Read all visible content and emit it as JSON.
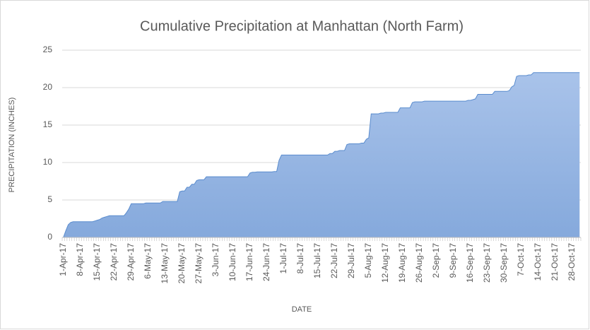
{
  "chart_data": {
    "type": "area",
    "title": "Cumulative Precipitation at Manhattan (North Farm)",
    "x_label": "DATE",
    "y_label": "PRECIPITATION (INCHES)",
    "color": "#8fb0de",
    "line_color": "#5a8cce",
    "grid": true,
    "ylim": [
      0,
      25
    ],
    "yticks": [
      0,
      5,
      10,
      15,
      20,
      25
    ],
    "categories": [
      "1-Apr-17",
      null,
      null,
      null,
      null,
      null,
      null,
      "8-Apr-17",
      null,
      null,
      null,
      null,
      null,
      null,
      "15-Apr-17",
      null,
      null,
      null,
      null,
      null,
      null,
      "22-Apr-17",
      null,
      null,
      null,
      null,
      null,
      null,
      "29-Apr-17",
      null,
      null,
      null,
      null,
      null,
      null,
      "6-May-17",
      null,
      null,
      null,
      null,
      null,
      null,
      "13-May-17",
      null,
      null,
      null,
      null,
      null,
      null,
      "20-May-17",
      null,
      null,
      null,
      null,
      null,
      null,
      "27-May-17",
      null,
      null,
      null,
      null,
      null,
      null,
      "3-Jun-17",
      null,
      null,
      null,
      null,
      null,
      null,
      "10-Jun-17",
      null,
      null,
      null,
      null,
      null,
      null,
      "17-Jun-17",
      null,
      null,
      null,
      null,
      null,
      null,
      "24-Jun-17",
      null,
      null,
      null,
      null,
      null,
      null,
      "1-Jul-17",
      null,
      null,
      null,
      null,
      null,
      null,
      "8-Jul-17",
      null,
      null,
      null,
      null,
      null,
      null,
      "15-Jul-17",
      null,
      null,
      null,
      null,
      null,
      null,
      "22-Jul-17",
      null,
      null,
      null,
      null,
      null,
      null,
      "29-Jul-17",
      null,
      null,
      null,
      null,
      null,
      null,
      "5-Aug-17",
      null,
      null,
      null,
      null,
      null,
      null,
      "12-Aug-17",
      null,
      null,
      null,
      null,
      null,
      null,
      "19-Aug-17",
      null,
      null,
      null,
      null,
      null,
      null,
      "26-Aug-17",
      null,
      null,
      null,
      null,
      null,
      null,
      "2-Sep-17",
      null,
      null,
      null,
      null,
      null,
      null,
      "9-Sep-17",
      null,
      null,
      null,
      null,
      null,
      null,
      "16-Sep-17",
      null,
      null,
      null,
      null,
      null,
      null,
      "23-Sep-17",
      null,
      null,
      null,
      null,
      null,
      null,
      "30-Sep-17",
      null,
      null,
      null,
      null,
      null,
      null,
      "7-Oct-17",
      null,
      null,
      null,
      null,
      null,
      null,
      "14-Oct-17",
      null,
      null,
      null,
      null,
      null,
      null,
      "21-Oct-17",
      null,
      null,
      null,
      null,
      null,
      null,
      "28-Oct-17",
      null,
      null,
      null
    ],
    "values": [
      0,
      0.9,
      1.7,
      2.0,
      2.1,
      2.1,
      2.1,
      2.1,
      2.1,
      2.1,
      2.1,
      2.1,
      2.1,
      2.2,
      2.3,
      2.4,
      2.6,
      2.7,
      2.8,
      2.9,
      2.9,
      2.9,
      2.9,
      2.9,
      2.9,
      2.9,
      3.3,
      3.8,
      4.5,
      4.5,
      4.5,
      4.5,
      4.5,
      4.5,
      4.6,
      4.6,
      4.6,
      4.6,
      4.6,
      4.6,
      4.6,
      4.8,
      4.8,
      4.8,
      4.8,
      4.8,
      4.8,
      4.8,
      6.1,
      6.2,
      6.2,
      6.7,
      6.7,
      7.1,
      7.1,
      7.6,
      7.7,
      7.7,
      7.7,
      8.1,
      8.1,
      8.1,
      8.1,
      8.1,
      8.1,
      8.1,
      8.1,
      8.1,
      8.1,
      8.1,
      8.1,
      8.1,
      8.1,
      8.1,
      8.1,
      8.1,
      8.1,
      8.6,
      8.7,
      8.7,
      8.75,
      8.75,
      8.75,
      8.75,
      8.75,
      8.75,
      8.75,
      8.8,
      8.8,
      10.3,
      11.0,
      11.0,
      11.0,
      11.0,
      11.0,
      11.0,
      11.0,
      11.0,
      11.0,
      11.0,
      11.0,
      11.0,
      11.0,
      11.0,
      11.0,
      11.0,
      11.0,
      11.0,
      11.0,
      11.0,
      11.2,
      11.2,
      11.5,
      11.5,
      11.6,
      11.6,
      11.6,
      12.4,
      12.5,
      12.5,
      12.5,
      12.5,
      12.5,
      12.6,
      12.6,
      13.1,
      13.3,
      16.5,
      16.5,
      16.5,
      16.5,
      16.6,
      16.6,
      16.7,
      16.7,
      16.7,
      16.7,
      16.7,
      16.7,
      17.3,
      17.3,
      17.3,
      17.3,
      17.3,
      18.0,
      18.1,
      18.1,
      18.1,
      18.1,
      18.2,
      18.2,
      18.2,
      18.2,
      18.2,
      18.2,
      18.2,
      18.2,
      18.2,
      18.2,
      18.2,
      18.2,
      18.2,
      18.2,
      18.2,
      18.2,
      18.2,
      18.2,
      18.3,
      18.3,
      18.4,
      18.5,
      19.1,
      19.1,
      19.1,
      19.1,
      19.1,
      19.1,
      19.1,
      19.5,
      19.5,
      19.5,
      19.5,
      19.5,
      19.5,
      19.6,
      20.1,
      20.3,
      21.5,
      21.6,
      21.6,
      21.6,
      21.6,
      21.7,
      21.7,
      22.0,
      22.0,
      22.0,
      22.0,
      22.0,
      22.0,
      22.0,
      22.0,
      22.0,
      22.0,
      22.0,
      22.0,
      22.0,
      22.0,
      22.0,
      22.0,
      22.0,
      22.0,
      22.0,
      22.0
    ]
  }
}
